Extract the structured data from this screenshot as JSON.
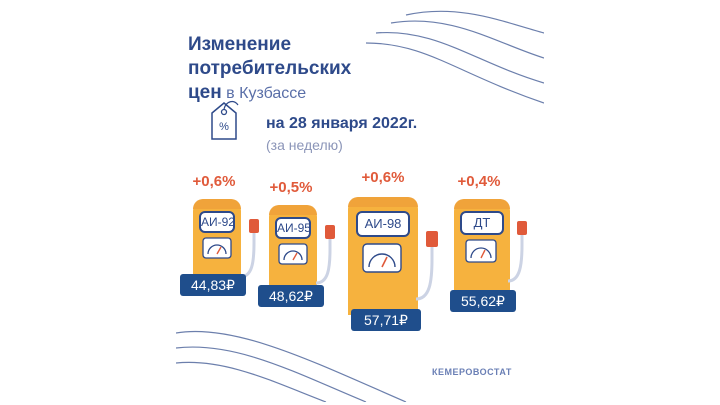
{
  "title": {
    "line1": "Изменение",
    "line2": "потребительских",
    "line3_bold": "цен",
    "line3_light": " в Кузбассе"
  },
  "date": "на 28 января 2022г.",
  "period": "(за неделю)",
  "pumps": [
    {
      "fuel": "АИ-92",
      "change": "+0,6%",
      "price": "44,83₽"
    },
    {
      "fuel": "АИ-95",
      "change": "+0,5%",
      "price": "48,62₽"
    },
    {
      "fuel": "АИ-98",
      "change": "+0,6%",
      "price": "57,71₽"
    },
    {
      "fuel": "ДТ",
      "change": "+0,4%",
      "price": "55,62₽"
    }
  ],
  "logo": "КЕМЕРОВОСТАТ",
  "colors": {
    "accent": "#e05a3a",
    "pump": "#f6b23e",
    "navy": "#2e4a8a",
    "price_bg": "#1f4e8c"
  }
}
